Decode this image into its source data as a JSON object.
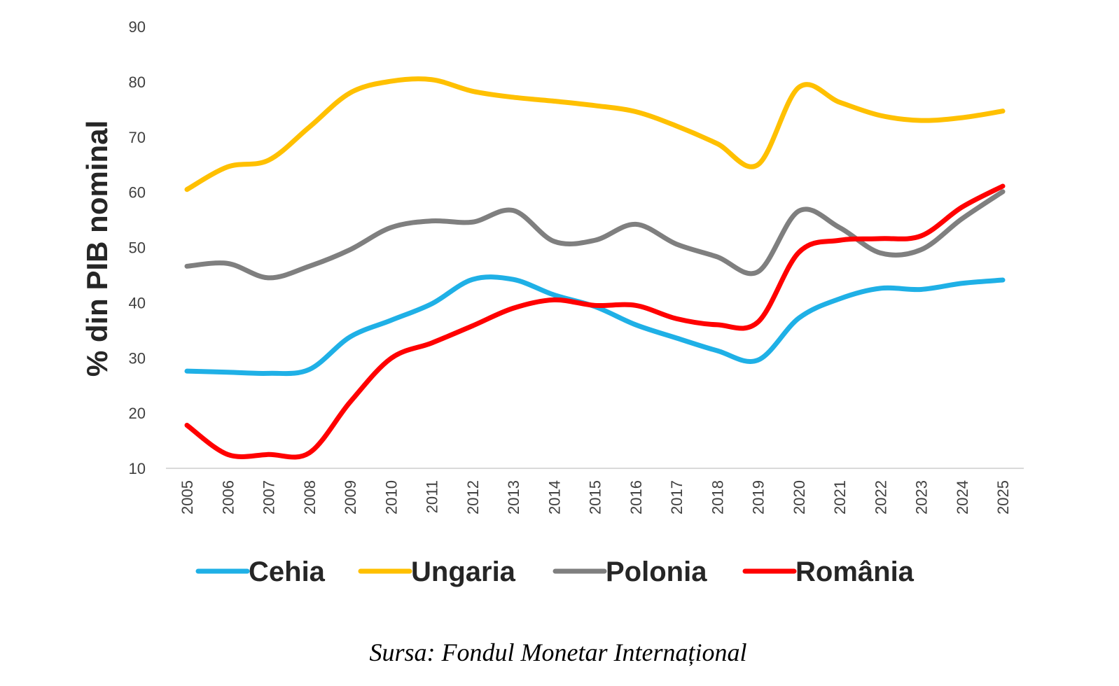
{
  "chart_data": {
    "type": "line",
    "title": "",
    "xlabel": "",
    "ylabel": "% din PIB nominal",
    "ylim": [
      10,
      90
    ],
    "yticks": [
      10,
      20,
      30,
      40,
      50,
      60,
      70,
      80,
      90
    ],
    "grid": false,
    "legend_position": "bottom",
    "x": [
      "2005",
      "2006",
      "2007",
      "2008",
      "2009",
      "2010",
      "2011",
      "2012",
      "2013",
      "2014",
      "2015",
      "2016",
      "2017",
      "2018",
      "2019",
      "2020",
      "2021",
      "2022",
      "2023",
      "2024",
      "2025"
    ],
    "series": [
      {
        "name": "Cehia",
        "color": "#1FB0E6",
        "values": [
          27.6,
          27.4,
          27.2,
          27.9,
          33.8,
          36.8,
          39.8,
          44.2,
          44.2,
          41.4,
          39.3,
          36.0,
          33.6,
          31.3,
          29.6,
          37.2,
          40.7,
          42.6,
          42.4,
          43.5,
          44.1
        ]
      },
      {
        "name": "Ungaria",
        "color": "#FFC000",
        "values": [
          60.5,
          64.6,
          65.8,
          71.8,
          78.0,
          80.1,
          80.4,
          78.3,
          77.2,
          76.5,
          75.7,
          74.6,
          72.0,
          68.8,
          65.0,
          79.0,
          76.3,
          73.9,
          73.0,
          73.5,
          74.7
        ]
      },
      {
        "name": "Polonia",
        "color": "#7F7F7F",
        "values": [
          46.6,
          47.1,
          44.5,
          46.6,
          49.6,
          53.6,
          54.8,
          54.6,
          56.7,
          51.1,
          51.3,
          54.2,
          50.6,
          48.3,
          45.6,
          56.6,
          53.6,
          49.0,
          49.6,
          55.2,
          60.1
        ]
      },
      {
        "name": "România",
        "color": "#FF0000",
        "values": [
          17.8,
          12.5,
          12.5,
          12.8,
          22.0,
          29.9,
          32.7,
          35.8,
          39.0,
          40.5,
          39.5,
          39.5,
          37.1,
          36.0,
          36.5,
          49.1,
          51.3,
          51.6,
          52.1,
          57.3,
          61.1
        ]
      }
    ]
  },
  "source_note": "Sursa: Fondul Monetar Internațional"
}
